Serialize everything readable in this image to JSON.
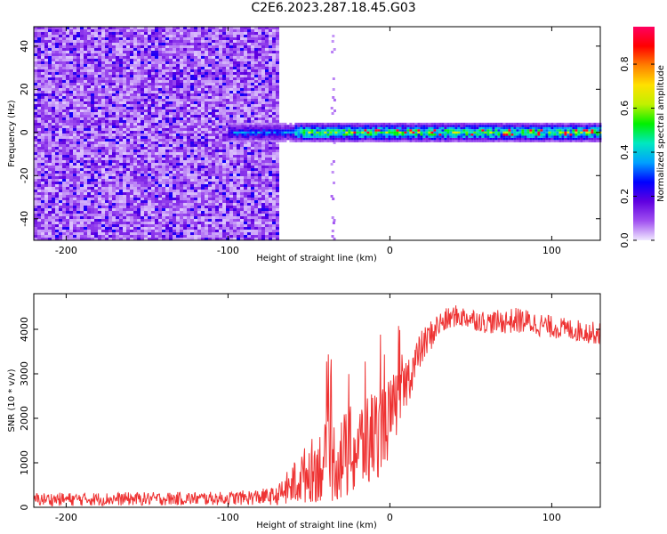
{
  "title": "C2E6.2023.287.18.45.G03",
  "chart_data": [
    {
      "type": "heatmap",
      "xlabel": "Height of straight line (km)",
      "ylabel": "Frequency (Hz)",
      "xlim": [
        -220,
        130
      ],
      "ylim": [
        -50,
        49
      ],
      "x_ticks": [
        -200,
        -100,
        0,
        100
      ],
      "x_tick_labels": [
        "-200",
        "-100",
        "0",
        "100"
      ],
      "y_ticks": [
        -40,
        -20,
        0,
        20,
        40
      ],
      "y_tick_labels": [
        "-40",
        "-20",
        "0",
        "20",
        "40"
      ],
      "colorbar": {
        "label": "Normalized spectral amplitude",
        "range": [
          0,
          1
        ],
        "ticks": [
          0.0,
          0.2,
          0.4,
          0.6,
          0.8
        ],
        "tick_labels": [
          "0.0",
          "0.2",
          "0.4",
          "0.6",
          "0.8"
        ],
        "colors": [
          "#f0e8ff",
          "#a050f0",
          "#6000e0",
          "#0000ff",
          "#00a0ff",
          "#00e8c0",
          "#00f000",
          "#c0f000",
          "#ffe000",
          "#ff8000",
          "#ff0000",
          "#ff0060"
        ]
      },
      "regions": [
        {
          "x_range": [
            -220,
            -70
          ],
          "freq_range": [
            -50,
            49
          ],
          "amplitude": [
            0.05,
            0.35
          ],
          "description_color": "#7a2be6"
        },
        {
          "x_range": [
            -100,
            130
          ],
          "freq_range": [
            -3,
            3
          ],
          "amplitude": [
            0.3,
            1.0
          ]
        }
      ]
    },
    {
      "type": "line",
      "xlabel": "Height of straight line (km)",
      "ylabel": "SNR (10 * v/v)",
      "xlim": [
        -220,
        130
      ],
      "ylim": [
        0,
        4800
      ],
      "x_ticks": [
        -200,
        -100,
        0,
        100
      ],
      "x_tick_labels": [
        "-200",
        "-100",
        "0",
        "100"
      ],
      "y_ticks": [
        0,
        1000,
        2000,
        3000,
        4000
      ],
      "y_tick_labels": [
        "0",
        "1000",
        "2000",
        "3000",
        "4000"
      ],
      "series": [
        {
          "color": "#ee3333",
          "x": [
            -220,
            -200,
            -150,
            -100,
            -70,
            -60,
            -50,
            -40,
            -30,
            -20,
            -10,
            0,
            10,
            20,
            30,
            40,
            50,
            60,
            80,
            100,
            120,
            130
          ],
          "y_mid": [
            180,
            180,
            190,
            200,
            250,
            500,
            800,
            1000,
            1100,
            1300,
            1600,
            2000,
            2800,
            3600,
            4100,
            4300,
            4250,
            4150,
            4200,
            4050,
            3950,
            3900
          ],
          "y_spread": [
            150,
            150,
            150,
            150,
            200,
            500,
            700,
            900,
            1000,
            1100,
            1100,
            900,
            600,
            400,
            300,
            250,
            250,
            250,
            300,
            250,
            250,
            250
          ]
        }
      ]
    }
  ]
}
